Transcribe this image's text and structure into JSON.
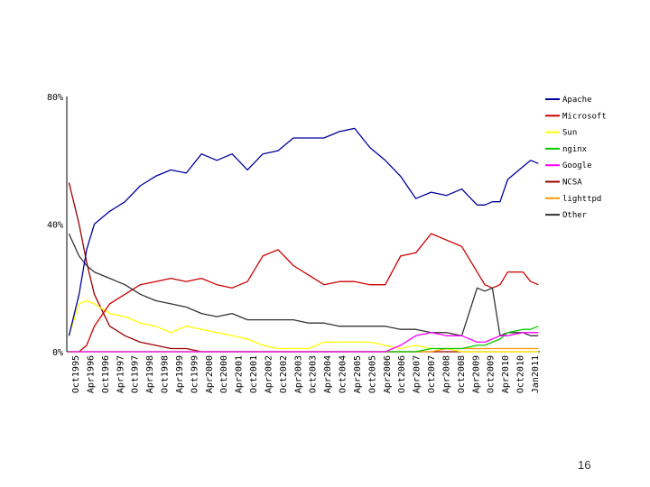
{
  "slide": {
    "page_number": "16"
  },
  "chart_data": {
    "type": "line",
    "title": "",
    "xlabel": "",
    "ylabel": "",
    "ylim": [
      0,
      80
    ],
    "y_ticks": [
      "0%",
      "40%",
      "80%"
    ],
    "x_tick_labels": [
      "Oct1995",
      "Apr1996",
      "Oct1996",
      "Apr1997",
      "Oct1997",
      "Apr1998",
      "Oct1998",
      "Apr1999",
      "Oct1999",
      "Apr2000",
      "Oct2000",
      "Apr2001",
      "Oct2001",
      "Apr2002",
      "Oct2002",
      "Apr2003",
      "Oct2003",
      "Apr2004",
      "Oct2004",
      "Apr2005",
      "Oct2005",
      "Apr2006",
      "Oct2006",
      "Apr2007",
      "Oct2007",
      "Apr2008",
      "Oct2008",
      "Apr2009",
      "Oct2009",
      "Apr2010",
      "Oct2010",
      "Jan2011"
    ],
    "legend_position": "right",
    "grid": false,
    "x": [
      1995.67,
      1996.0,
      1996.25,
      1996.5,
      1997.0,
      1997.5,
      1998.0,
      1998.5,
      1999.0,
      1999.5,
      2000.0,
      2000.5,
      2001.0,
      2001.5,
      2002.0,
      2002.5,
      2003.0,
      2003.5,
      2004.0,
      2004.5,
      2005.0,
      2005.5,
      2006.0,
      2006.5,
      2007.0,
      2007.5,
      2008.0,
      2008.5,
      2009.0,
      2009.25,
      2009.5,
      2009.75,
      2010.0,
      2010.5,
      2010.75,
      2011.0
    ],
    "series": [
      {
        "name": "Apache",
        "color": "#000099",
        "values": [
          5,
          18,
          32,
          40,
          44,
          47,
          52,
          55,
          57,
          56,
          62,
          60,
          62,
          57,
          62,
          63,
          67,
          67,
          67,
          69,
          70,
          64,
          60,
          55,
          48,
          50,
          49,
          51,
          46,
          46,
          47,
          47,
          54,
          58,
          60,
          59
        ]
      },
      {
        "name": "Microsoft",
        "color": "#cc0000",
        "values": [
          0,
          0,
          2,
          8,
          15,
          18,
          21,
          22,
          23,
          22,
          23,
          21,
          20,
          22,
          30,
          32,
          27,
          24,
          21,
          22,
          22,
          21,
          21,
          30,
          31,
          37,
          35,
          33,
          25,
          21,
          20,
          21,
          25,
          25,
          22,
          21
        ]
      },
      {
        "name": "Sun",
        "color": "#ffff00",
        "values": [
          5,
          15,
          16,
          15,
          12,
          11,
          9,
          8,
          6,
          8,
          7,
          6,
          5,
          4,
          2,
          1,
          1,
          1,
          3,
          3,
          3,
          3,
          2,
          1,
          2,
          1,
          1,
          0,
          0,
          0,
          0,
          0,
          0,
          0,
          0,
          0
        ]
      },
      {
        "name": "nginx",
        "color": "#00cc00",
        "values": [
          0,
          0,
          0,
          0,
          0,
          0,
          0,
          0,
          0,
          0,
          0,
          0,
          0,
          0,
          0,
          0,
          0,
          0,
          0,
          0,
          0,
          0,
          0,
          0,
          0,
          1,
          1,
          1,
          2,
          2,
          3,
          4,
          6,
          7,
          7,
          8
        ]
      },
      {
        "name": "Google",
        "color": "#ff00ff",
        "values": [
          0,
          0,
          0,
          0,
          0,
          0,
          0,
          0,
          0,
          0,
          0,
          0,
          0,
          0,
          0,
          0,
          0,
          0,
          0,
          0,
          0,
          0,
          0,
          2,
          5,
          6,
          5,
          5,
          3,
          3,
          4,
          5,
          5,
          6,
          6,
          6
        ]
      },
      {
        "name": "NCSA",
        "color": "#990000",
        "values": [
          53,
          40,
          28,
          18,
          8,
          5,
          3,
          2,
          1,
          1,
          0,
          0,
          0,
          0,
          0,
          0,
          0,
          0,
          0,
          0,
          0,
          0,
          0,
          0,
          0,
          0,
          0,
          0,
          0,
          0,
          0,
          0,
          0,
          0,
          0,
          0
        ]
      },
      {
        "name": "lighttpd",
        "color": "#ff9900",
        "values": [
          0,
          0,
          0,
          0,
          0,
          0,
          0,
          0,
          0,
          0,
          0,
          0,
          0,
          0,
          0,
          0,
          0,
          0,
          0,
          0,
          0,
          0,
          0,
          0,
          0,
          0,
          1,
          1,
          1,
          1,
          1,
          1,
          1,
          1,
          1,
          1
        ]
      },
      {
        "name": "Other",
        "color": "#333333",
        "values": [
          37,
          30,
          27,
          25,
          23,
          21,
          18,
          16,
          15,
          14,
          12,
          11,
          12,
          10,
          10,
          10,
          10,
          9,
          9,
          8,
          8,
          8,
          8,
          7,
          7,
          6,
          6,
          5,
          20,
          19,
          20,
          5,
          6,
          6,
          5,
          5
        ]
      }
    ]
  }
}
